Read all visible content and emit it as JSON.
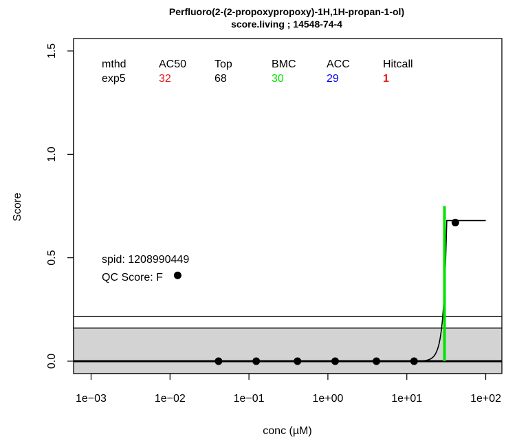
{
  "chart_data": {
    "type": "scatter",
    "title": "Perfluoro(2-(2-propoxypropoxy)-1H,1H-propan-1-ol)",
    "subtitle": "score.living ; 14548-74-4",
    "xlabel": "conc (µM)",
    "ylabel": "Score",
    "x_scale": "log10",
    "xlim": [
      0.0006,
      160
    ],
    "ylim": [
      -0.06,
      1.56
    ],
    "x_ticks": [
      0.001,
      0.01,
      0.1,
      1,
      10,
      100
    ],
    "x_tick_labels": [
      "1e−03",
      "1e−02",
      "1e−01",
      "1e+00",
      "1e+01",
      "1e+02"
    ],
    "y_ticks": [
      0,
      0.5,
      1,
      1.5
    ],
    "y_tick_labels": [
      "0.0",
      "0.5",
      "1.0",
      "1.5"
    ],
    "grid": false,
    "points": [
      {
        "x": 0.0412,
        "y": 0
      },
      {
        "x": 0.1236,
        "y": 0
      },
      {
        "x": 0.412,
        "y": 0
      },
      {
        "x": 1.236,
        "y": 0
      },
      {
        "x": 4.12,
        "y": 0
      },
      {
        "x": 12.36,
        "y": 0
      },
      {
        "x": 41.2,
        "y": 0.67
      }
    ],
    "baseline_band": {
      "ymin": -0.06,
      "ymax": 0.16,
      "color": "#d3d3d3"
    },
    "cutoff_line_y": 0.215,
    "zero_line_y": 0,
    "curve": {
      "model": "exp5",
      "tp": 0.68,
      "ga": 32,
      "p": 8,
      "xmax": 100
    },
    "bmc_line": {
      "x": 30,
      "ymin": 0,
      "ymax": 0.75,
      "color": "#00e400"
    },
    "info_table": {
      "headers": [
        "mthd",
        "AC50",
        "Top",
        "BMC",
        "ACC",
        "Hitcall"
      ],
      "values": [
        "exp5",
        "32",
        "68",
        "30",
        "29",
        "1"
      ],
      "value_colors": [
        "#000000",
        "#e41a1c",
        "#000000",
        "#00e400",
        "#0000ee",
        "#e41a1c"
      ]
    },
    "spid_label": "spid: 1208990449",
    "qc_label": "QC Score: F",
    "qc_marker": {
      "x": 0.0125,
      "y": 0.415
    }
  }
}
